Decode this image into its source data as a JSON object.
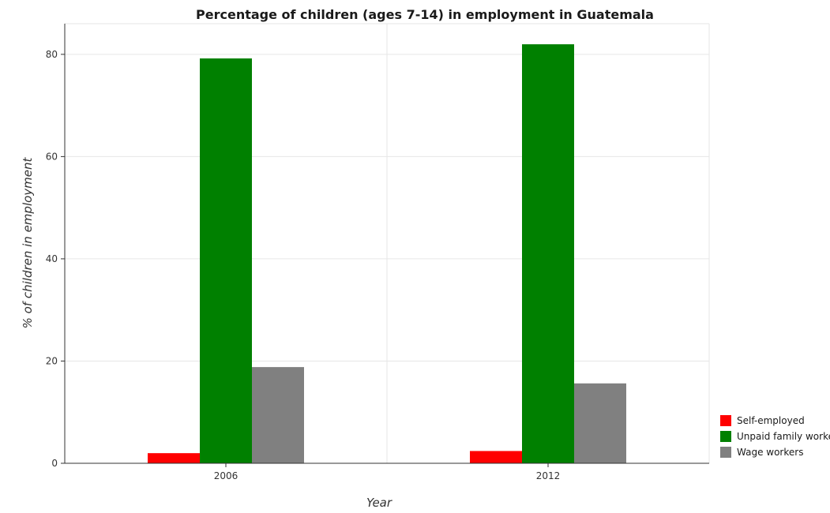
{
  "chart_data": {
    "type": "bar",
    "title": "Percentage of children (ages 7-14) in employment in Guatemala",
    "xlabel": "Year",
    "ylabel": "% of children in employment",
    "categories": [
      "2006",
      "2012"
    ],
    "ylim": [
      0,
      86
    ],
    "yticks": [
      0,
      20,
      40,
      60,
      80
    ],
    "grid": true,
    "legend_position": "bottom-right",
    "series": [
      {
        "name": "Self-employed",
        "color": "#ff0000",
        "values": [
          1.98,
          2.4
        ]
      },
      {
        "name": "Unpaid family workers",
        "color": "#008000",
        "values": [
          79.2,
          81.97
        ]
      },
      {
        "name": "Wage workers",
        "color": "#808080",
        "values": [
          18.82,
          15.63
        ]
      }
    ]
  }
}
